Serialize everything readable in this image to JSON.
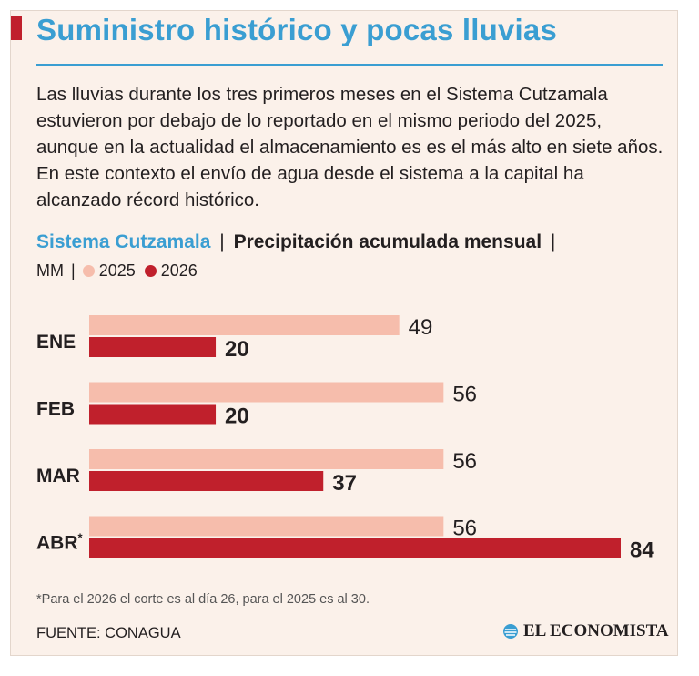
{
  "header": {
    "title": "Suministro histórico y pocas lluvias",
    "intro": "Las lluvias durante los tres primeros meses en el Sistema Cutzamala estuvieron por debajo de lo reportado en el mismo periodo del 2025, aunque en la actualidad el almacenamiento es es el más alto en siete años. En este contexto el envío de agua desde el sistema a la capital ha alcanzado récord histórico."
  },
  "chart_header": {
    "system": "Sistema Cutzamala",
    "separator": "|",
    "title": "Precipitación acumulada mensual",
    "trailing_separator": "|"
  },
  "legend": {
    "unit": "MM",
    "separator": "|",
    "items": [
      {
        "label": "2025",
        "color": "#f6bdac"
      },
      {
        "label": "2026",
        "color": "#c0202c"
      }
    ]
  },
  "chart_data": {
    "type": "bar",
    "orientation": "horizontal",
    "categories": [
      "ENE",
      "FEB",
      "MAR",
      "ABR*"
    ],
    "series": [
      {
        "name": "2025",
        "color": "#f6bdac",
        "values": [
          49,
          56,
          56,
          56
        ]
      },
      {
        "name": "2026",
        "color": "#c0202c",
        "values": [
          20,
          20,
          37,
          84
        ]
      }
    ],
    "xlim": [
      0,
      84
    ],
    "grid": false,
    "data_labels": true
  },
  "footer": {
    "footnote": "*Para el 2026 el corte es al día 26, para el 2025 es al 30.",
    "source": "FUENTE: CONAGUA",
    "brand": "EL ECONOMISTA"
  },
  "colors": {
    "accent_blue": "#3a9ed2",
    "accent_red": "#c0202c",
    "light_bar": "#f6bdac",
    "background": "#fbf1ea"
  }
}
